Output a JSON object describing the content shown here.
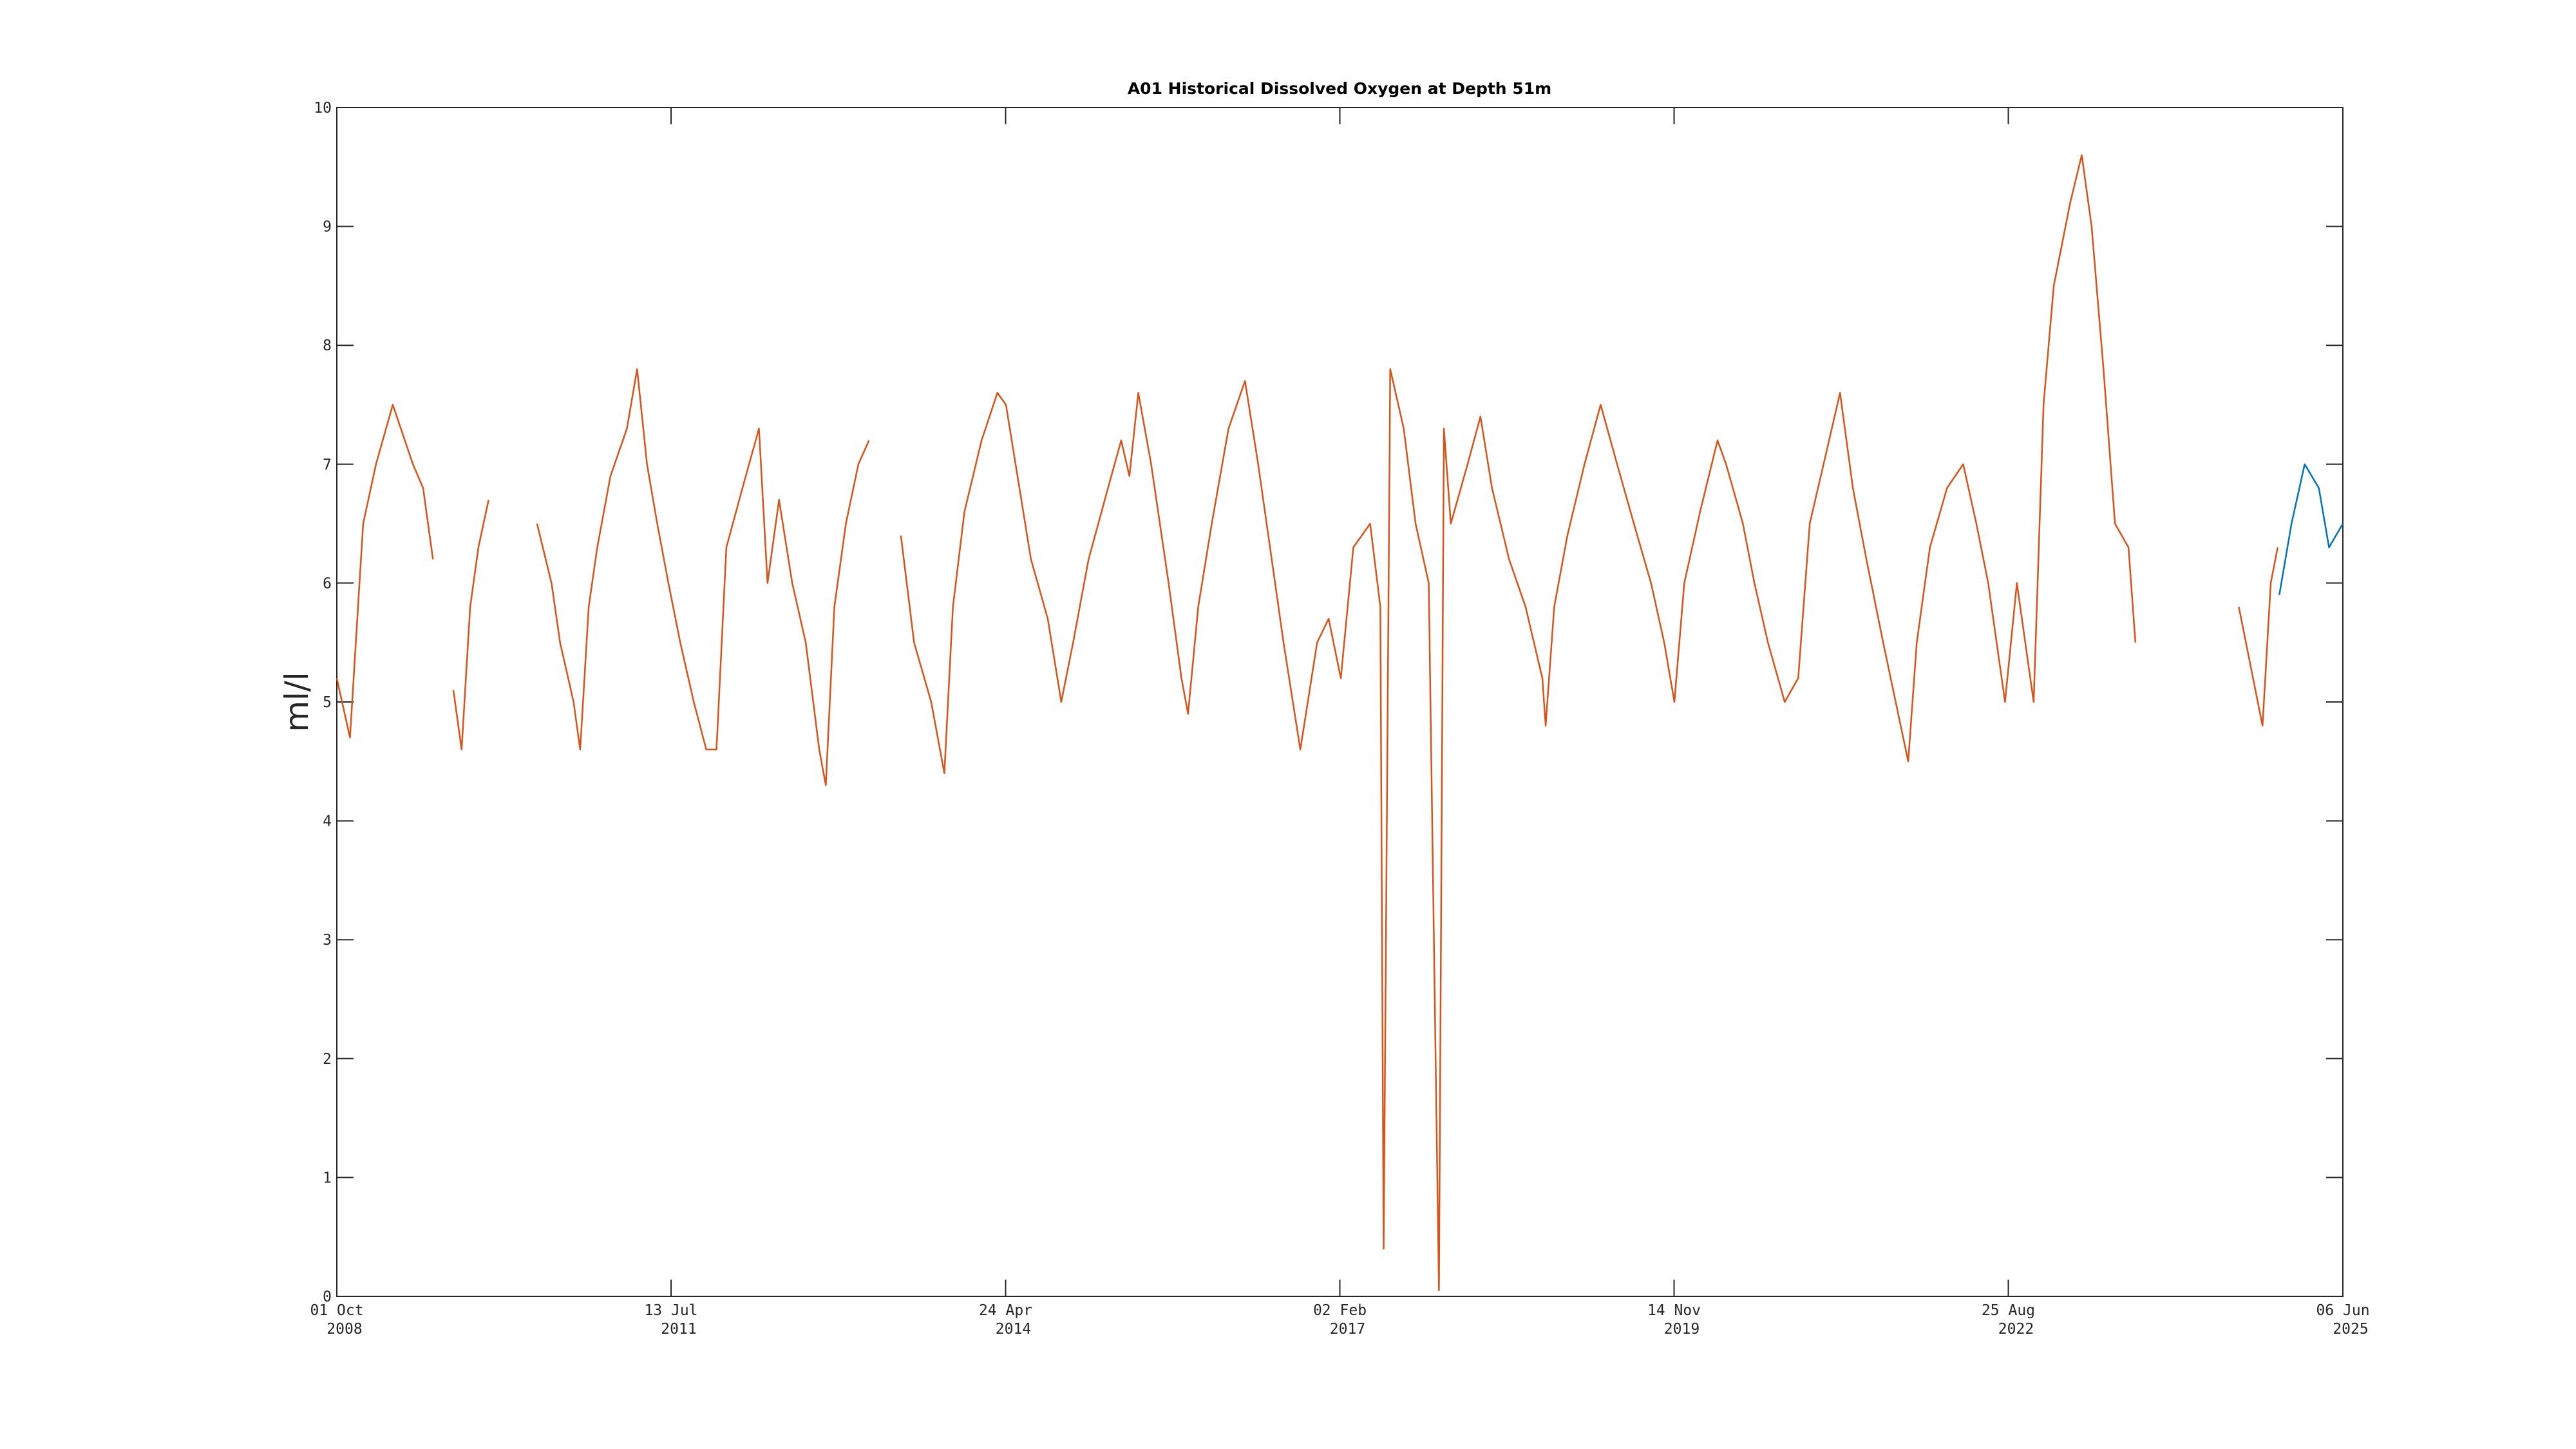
{
  "chart_data": {
    "type": "line",
    "title": "A01 Historical Dissolved Oxygen at Depth 51m",
    "ylabel": "ml/l",
    "xlim": [
      "2008-10-01",
      "2025-06-06"
    ],
    "xticks": [
      {
        "value": "2008-10-01",
        "label": [
          "01 Oct",
          "2008"
        ]
      },
      {
        "value": "2011-07-13",
        "label": [
          "13 Jul",
          "2011"
        ]
      },
      {
        "value": "2014-04-24",
        "label": [
          "24 Apr",
          "2014"
        ]
      },
      {
        "value": "2017-02-02",
        "label": [
          "02 Feb",
          "2017"
        ]
      },
      {
        "value": "2019-11-14",
        "label": [
          "14 Nov",
          "2019"
        ]
      },
      {
        "value": "2022-08-25",
        "label": [
          "25 Aug",
          "2022"
        ]
      },
      {
        "value": "2025-06-06",
        "label": [
          "06 Jun",
          "2025"
        ]
      }
    ],
    "ylim": [
      0,
      10
    ],
    "yticks": [
      0,
      1,
      2,
      3,
      4,
      5,
      6,
      7,
      8,
      9,
      10
    ],
    "grid": false,
    "series": [
      {
        "color": "#D95319",
        "x": [
          "2008-10-01",
          "2008-11-10",
          "2008-12-20",
          "2009-01-28",
          "2009-03-20",
          "2009-05-20",
          "2009-06-20",
          "2009-07-20",
          "2009-08-15",
          "2009-09-20",
          "2009-10-15",
          "2009-11-10",
          "2009-12-05",
          "2010-01-05",
          "2010-03-15",
          "2010-06-01",
          "2010-07-15",
          "2010-08-10",
          "2010-09-20",
          "2010-10-10",
          "2010-11-05",
          "2010-12-01",
          "2011-01-10",
          "2011-03-01",
          "2011-04-01",
          "2011-05-01",
          "2011-06-01",
          "2011-07-05",
          "2011-08-10",
          "2011-09-20",
          "2011-10-28",
          "2011-11-28",
          "2011-12-28",
          "2012-02-15",
          "2012-04-05",
          "2012-05-01",
          "2012-06-05",
          "2012-07-15",
          "2012-08-25",
          "2012-10-05",
          "2012-10-25",
          "2012-11-20",
          "2012-12-25",
          "2013-02-01",
          "2013-03-05",
          "2013-04-10",
          "2013-06-10",
          "2013-07-20",
          "2013-09-10",
          "2013-10-20",
          "2013-11-15",
          "2013-12-20",
          "2014-02-10",
          "2014-03-30",
          "2014-04-25",
          "2014-06-05",
          "2014-07-10",
          "2014-08-30",
          "2014-10-10",
          "2014-11-15",
          "2015-01-01",
          "2015-03-01",
          "2015-04-10",
          "2015-05-05",
          "2015-06-01",
          "2015-07-10",
          "2015-09-01",
          "2015-10-10",
          "2015-10-30",
          "2015-11-30",
          "2016-01-10",
          "2016-03-01",
          "2016-04-20",
          "2016-05-30",
          "2016-07-05",
          "2016-08-15",
          "2016-10-05",
          "2016-11-25",
          "2016-12-30",
          "2017-02-05",
          "2017-03-15",
          "2017-05-05",
          "2017-06-05",
          "2017-06-15",
          "2017-07-05",
          "2017-08-15",
          "2017-09-20",
          "2017-10-30",
          "2017-11-30",
          "2017-12-15",
          "2018-01-05",
          "2018-02-25",
          "2018-04-05",
          "2018-05-10",
          "2018-07-01",
          "2018-08-20",
          "2018-10-10",
          "2018-10-20",
          "2018-11-15",
          "2018-12-25",
          "2019-02-15",
          "2019-04-05",
          "2019-05-25",
          "2019-07-15",
          "2019-09-05",
          "2019-10-15",
          "2019-11-15",
          "2019-12-15",
          "2020-02-01",
          "2020-03-25",
          "2020-04-20",
          "2020-06-10",
          "2020-07-15",
          "2020-08-25",
          "2020-10-15",
          "2020-11-25",
          "2020-12-30",
          "2021-02-10",
          "2021-04-01",
          "2021-05-10",
          "2021-06-20",
          "2021-08-10",
          "2021-10-25",
          "2021-11-20",
          "2021-12-30",
          "2022-02-20",
          "2022-04-10",
          "2022-05-20",
          "2022-06-25",
          "2022-08-15",
          "2022-09-20",
          "2022-11-10",
          "2022-12-10",
          "2023-01-10",
          "2023-03-01",
          "2023-04-05",
          "2023-05-05",
          "2023-06-10",
          "2023-07-15",
          "2023-08-25",
          "2023-09-15",
          "2024-01-01",
          "2024-07-25",
          "2024-08-30",
          "2024-10-05",
          "2024-10-30",
          "2024-11-20"
        ],
        "values": [
          5.2,
          4.7,
          6.5,
          7.0,
          7.5,
          7.0,
          6.8,
          6.2,
          null,
          5.1,
          4.6,
          5.8,
          6.3,
          6.7,
          null,
          6.5,
          6.0,
          5.5,
          5.0,
          4.6,
          5.8,
          6.3,
          6.9,
          7.3,
          7.8,
          7.0,
          6.5,
          6.0,
          5.5,
          5.0,
          4.6,
          4.6,
          6.3,
          6.8,
          7.3,
          6.0,
          6.7,
          6.0,
          5.5,
          4.6,
          4.3,
          5.8,
          6.5,
          7.0,
          7.2,
          null,
          6.4,
          5.5,
          5.0,
          4.4,
          5.8,
          6.6,
          7.2,
          7.6,
          7.5,
          6.8,
          6.2,
          5.7,
          5.0,
          5.5,
          6.2,
          6.8,
          7.2,
          6.9,
          7.6,
          7.0,
          6.0,
          5.2,
          4.9,
          5.8,
          6.5,
          7.3,
          7.7,
          7.0,
          6.3,
          5.5,
          4.6,
          5.5,
          5.7,
          5.2,
          6.3,
          6.5,
          5.8,
          0.4,
          7.8,
          7.3,
          6.5,
          6.0,
          0.05,
          7.3,
          6.5,
          7.0,
          7.4,
          6.8,
          6.2,
          5.8,
          5.2,
          4.8,
          5.8,
          6.4,
          7.0,
          7.5,
          7.0,
          6.5,
          6.0,
          5.5,
          5.0,
          6.0,
          6.6,
          7.2,
          7.0,
          6.5,
          6.0,
          5.5,
          5.0,
          5.2,
          6.5,
          7.0,
          7.6,
          6.8,
          6.2,
          5.5,
          4.5,
          5.5,
          6.3,
          6.8,
          7.0,
          6.5,
          6.0,
          5.0,
          6.0,
          5.0,
          7.5,
          8.5,
          9.2,
          9.6,
          9.0,
          7.8,
          6.5,
          6.3,
          5.5,
          null,
          5.8,
          5.3,
          4.8,
          6.0,
          6.3
        ]
      },
      {
        "color": "#0072BD",
        "x": [
          "2024-11-25",
          "2025-01-01",
          "2025-02-10",
          "2025-03-25",
          "2025-04-25",
          "2025-06-06"
        ],
        "values": [
          5.9,
          6.5,
          7.0,
          6.8,
          6.3,
          6.5
        ]
      }
    ]
  }
}
